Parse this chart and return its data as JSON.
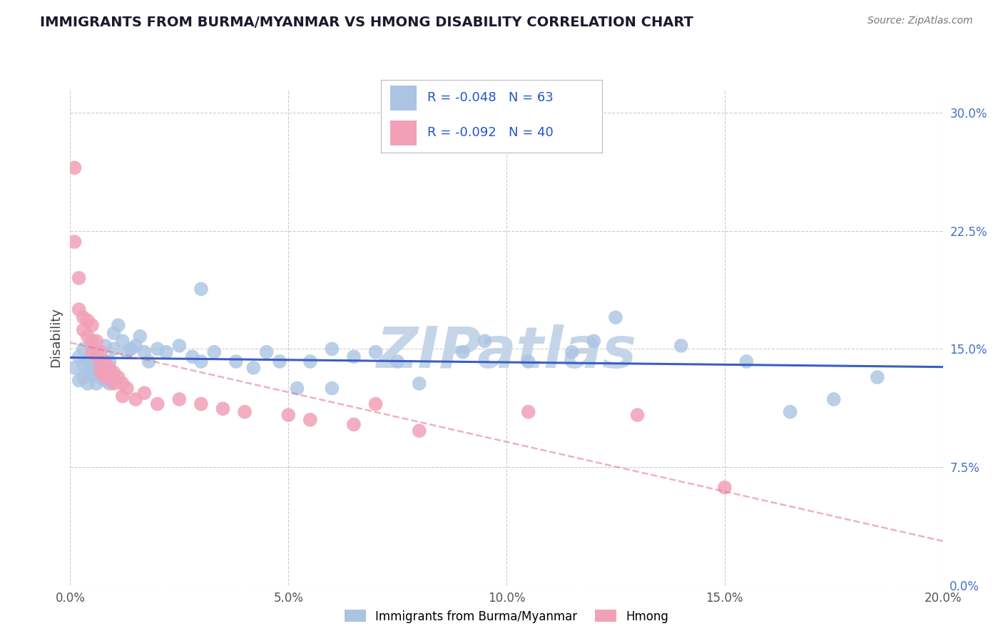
{
  "title": "IMMIGRANTS FROM BURMA/MYANMAR VS HMONG DISABILITY CORRELATION CHART",
  "source": "Source: ZipAtlas.com",
  "ylabel": "Disability",
  "xlim": [
    0.0,
    0.2
  ],
  "ylim": [
    0.0,
    0.315
  ],
  "xticks": [
    0.0,
    0.05,
    0.1,
    0.15,
    0.2
  ],
  "xtick_labels": [
    "0.0%",
    "5.0%",
    "10.0%",
    "15.0%",
    "20.0%"
  ],
  "yticks": [
    0.0,
    0.075,
    0.15,
    0.225,
    0.3
  ],
  "ytick_labels": [
    "0.0%",
    "7.5%",
    "15.0%",
    "22.5%",
    "30.0%"
  ],
  "series1_label": "Immigrants from Burma/Myanmar",
  "series1_R": "-0.048",
  "series1_N": "63",
  "series1_color": "#aac4e2",
  "series1_line_color": "#3a5fc4",
  "series2_label": "Hmong",
  "series2_R": "-0.092",
  "series2_N": "40",
  "series2_color": "#f2a0b8",
  "series2_line_color": "#e07090",
  "legend_R_color": "#2255cc",
  "background_color": "#ffffff",
  "watermark": "ZIPatlas",
  "watermark_color": "#c5d5e8",
  "grid_color": "#cccccc",
  "series1_x": [
    0.001,
    0.002,
    0.002,
    0.003,
    0.003,
    0.003,
    0.004,
    0.004,
    0.004,
    0.005,
    0.005,
    0.005,
    0.006,
    0.006,
    0.006,
    0.007,
    0.007,
    0.007,
    0.008,
    0.008,
    0.008,
    0.009,
    0.009,
    0.01,
    0.01,
    0.011,
    0.012,
    0.013,
    0.014,
    0.015,
    0.016,
    0.017,
    0.018,
    0.02,
    0.022,
    0.025,
    0.028,
    0.03,
    0.033,
    0.038,
    0.042,
    0.045,
    0.048,
    0.052,
    0.055,
    0.06,
    0.065,
    0.07,
    0.075,
    0.08,
    0.09,
    0.095,
    0.105,
    0.115,
    0.125,
    0.14,
    0.155,
    0.165,
    0.175,
    0.185,
    0.06,
    0.03,
    0.12
  ],
  "series1_y": [
    0.138,
    0.145,
    0.13,
    0.132,
    0.14,
    0.15,
    0.135,
    0.142,
    0.128,
    0.133,
    0.14,
    0.15,
    0.128,
    0.138,
    0.148,
    0.132,
    0.142,
    0.135,
    0.13,
    0.14,
    0.152,
    0.128,
    0.142,
    0.15,
    0.16,
    0.165,
    0.155,
    0.148,
    0.15,
    0.152,
    0.158,
    0.148,
    0.142,
    0.15,
    0.148,
    0.152,
    0.145,
    0.142,
    0.148,
    0.142,
    0.138,
    0.148,
    0.142,
    0.125,
    0.142,
    0.15,
    0.145,
    0.148,
    0.142,
    0.128,
    0.148,
    0.155,
    0.142,
    0.148,
    0.17,
    0.152,
    0.142,
    0.11,
    0.118,
    0.132,
    0.125,
    0.188,
    0.155
  ],
  "series2_x": [
    0.001,
    0.001,
    0.002,
    0.002,
    0.003,
    0.003,
    0.004,
    0.004,
    0.005,
    0.005,
    0.005,
    0.006,
    0.006,
    0.007,
    0.007,
    0.007,
    0.008,
    0.008,
    0.009,
    0.01,
    0.01,
    0.011,
    0.012,
    0.012,
    0.013,
    0.015,
    0.017,
    0.02,
    0.025,
    0.03,
    0.035,
    0.04,
    0.05,
    0.055,
    0.065,
    0.07,
    0.08,
    0.105,
    0.13,
    0.15
  ],
  "series2_y": [
    0.265,
    0.218,
    0.195,
    0.175,
    0.17,
    0.162,
    0.168,
    0.158,
    0.165,
    0.155,
    0.148,
    0.155,
    0.145,
    0.148,
    0.14,
    0.135,
    0.142,
    0.132,
    0.138,
    0.135,
    0.128,
    0.132,
    0.128,
    0.12,
    0.125,
    0.118,
    0.122,
    0.115,
    0.118,
    0.115,
    0.112,
    0.11,
    0.108,
    0.105,
    0.102,
    0.115,
    0.098,
    0.11,
    0.108,
    0.062
  ]
}
